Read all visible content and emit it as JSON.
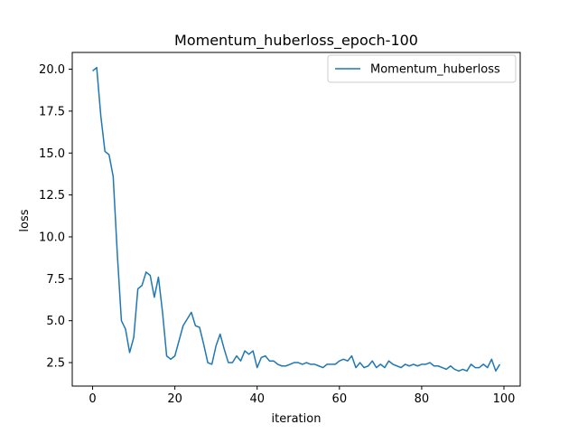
{
  "chart_data": {
    "type": "line",
    "title": "Momentum_huberloss_epoch-100",
    "xlabel": "iteration",
    "ylabel": "loss",
    "xlim": [
      -4.95,
      103.95
    ],
    "ylim": [
      1.1,
      21.0
    ],
    "xticks": [
      0,
      20,
      40,
      60,
      80,
      100
    ],
    "yticks": [
      2.5,
      5.0,
      7.5,
      10.0,
      12.5,
      15.0,
      17.5,
      20.0
    ],
    "xtick_labels": [
      "0",
      "20",
      "40",
      "60",
      "80",
      "100"
    ],
    "ytick_labels": [
      "2.5",
      "5.0",
      "7.5",
      "10.0",
      "12.5",
      "15.0",
      "17.5",
      "20.0"
    ],
    "grid": false,
    "legend_position": "top-right",
    "color": "#1f77b4",
    "series": [
      {
        "name": "Momentum_huberloss",
        "x": [
          0,
          1,
          2,
          3,
          4,
          5,
          6,
          7,
          8,
          9,
          10,
          11,
          12,
          13,
          14,
          15,
          16,
          17,
          18,
          19,
          20,
          21,
          22,
          23,
          24,
          25,
          26,
          27,
          28,
          29,
          30,
          31,
          32,
          33,
          34,
          35,
          36,
          37,
          38,
          39,
          40,
          41,
          42,
          43,
          44,
          45,
          46,
          47,
          48,
          49,
          50,
          51,
          52,
          53,
          54,
          55,
          56,
          57,
          58,
          59,
          60,
          61,
          62,
          63,
          64,
          65,
          66,
          67,
          68,
          69,
          70,
          71,
          72,
          73,
          74,
          75,
          76,
          77,
          78,
          79,
          80,
          81,
          82,
          83,
          84,
          85,
          86,
          87,
          88,
          89,
          90,
          91,
          92,
          93,
          94,
          95,
          96,
          97,
          98,
          99
        ],
        "values": [
          19.9,
          20.1,
          17.2,
          15.1,
          14.9,
          13.6,
          9.0,
          5.0,
          4.5,
          3.1,
          4.0,
          6.9,
          7.1,
          7.9,
          7.7,
          6.4,
          7.6,
          5.5,
          2.9,
          2.7,
          2.9,
          3.8,
          4.7,
          5.1,
          5.5,
          4.7,
          4.6,
          3.6,
          2.5,
          2.4,
          3.5,
          4.2,
          3.3,
          2.5,
          2.5,
          2.9,
          2.6,
          3.2,
          3.0,
          3.2,
          2.2,
          2.8,
          2.9,
          2.6,
          2.6,
          2.4,
          2.3,
          2.3,
          2.4,
          2.5,
          2.5,
          2.4,
          2.5,
          2.4,
          2.4,
          2.3,
          2.2,
          2.4,
          2.4,
          2.4,
          2.6,
          2.7,
          2.6,
          2.9,
          2.2,
          2.5,
          2.2,
          2.3,
          2.6,
          2.2,
          2.4,
          2.2,
          2.6,
          2.4,
          2.3,
          2.2,
          2.4,
          2.3,
          2.4,
          2.3,
          2.4,
          2.4,
          2.5,
          2.3,
          2.3,
          2.2,
          2.1,
          2.3,
          2.1,
          2.0,
          2.1,
          2.0,
          2.4,
          2.2,
          2.2,
          2.4,
          2.2,
          2.7,
          2.0,
          2.4
        ]
      }
    ]
  }
}
